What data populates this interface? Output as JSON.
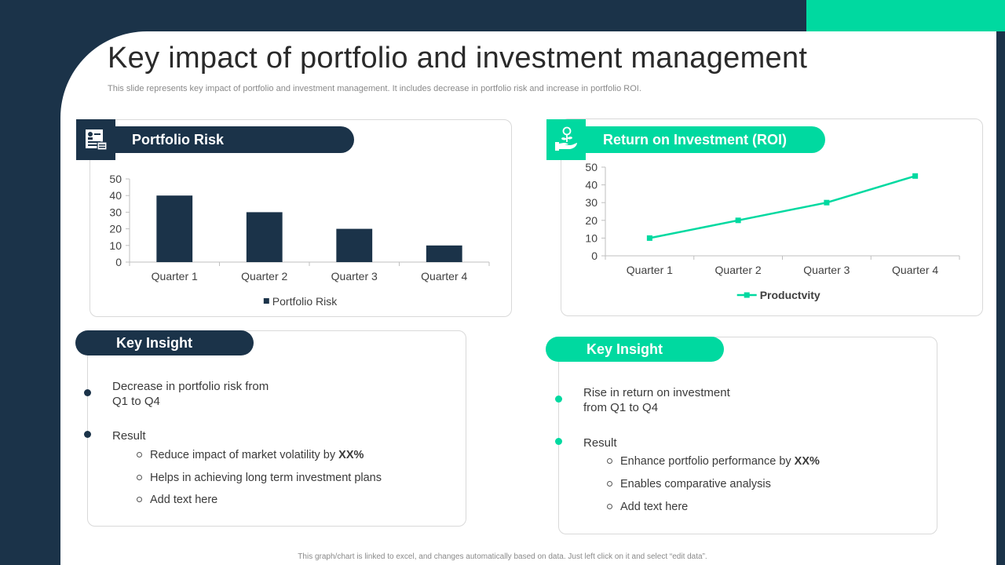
{
  "slide": {
    "title": "Key impact of portfolio and investment management",
    "subtitle": "This slide represents key impact of portfolio and investment management. It includes decrease in portfolio risk and increase in portfolio ROI.",
    "footer": "This graph/chart is linked to excel, and changes automatically based on data. Just left click on it and select “edit data”.",
    "colors": {
      "navy": "#1b3349",
      "green": "#00d9a0"
    }
  },
  "risk_card": {
    "heading": "Portfolio Risk",
    "icon": "portfolio-document-icon"
  },
  "roi_card": {
    "heading": "Return on Investment (ROI)",
    "icon": "plant-in-hand-icon"
  },
  "insight_left": {
    "heading": "Key Insight",
    "point1_line1": "Decrease in portfolio risk from",
    "point1_line2": "Q1 to Q4",
    "point2": "Result",
    "sub1_text": "Reduce impact of market volatility by ",
    "sub1_bold": "XX%",
    "sub2": "Helps in achieving long term investment plans",
    "sub3": "Add text here"
  },
  "insight_right": {
    "heading": "Key Insight",
    "point1_line1": "Rise in return  on investment",
    "point1_line2": "from Q1 to Q4",
    "point2": "Result",
    "sub1_text": "Enhance portfolio performance by ",
    "sub1_bold": "XX%",
    "sub2": "Enables comparative analysis",
    "sub3": "Add text here"
  },
  "chart_data": [
    {
      "type": "bar",
      "categories": [
        "Quarter 1",
        "Quarter 2",
        "Quarter 3",
        "Quarter 4"
      ],
      "series": [
        {
          "name": "Portfolio Risk",
          "values": [
            40,
            30,
            20,
            10
          ],
          "color": "#1b3349"
        }
      ],
      "ylim": [
        0,
        50
      ],
      "yticks": [
        0,
        10,
        20,
        30,
        40,
        50
      ],
      "grid": false,
      "legend": "bottom"
    },
    {
      "type": "line",
      "categories": [
        "Quarter 1",
        "Quarter 2",
        "Quarter 3",
        "Quarter 4"
      ],
      "series": [
        {
          "name": "Productvity",
          "values": [
            10,
            20,
            30,
            45
          ],
          "color": "#00d9a0"
        }
      ],
      "ylim": [
        0,
        50
      ],
      "yticks": [
        0,
        10,
        20,
        30,
        40,
        50
      ],
      "grid": false,
      "legend": "bottom"
    }
  ]
}
